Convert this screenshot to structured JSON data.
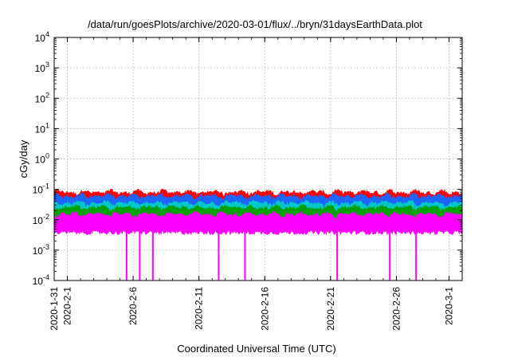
{
  "chart_data": {
    "type": "line",
    "title": "/data/run/goesPlots/archive/2020-03-01/flux/../bryn/31daysEarthData.plot",
    "xlabel": "Coordinated Universal Time (UTC)",
    "ylabel": "cGy/day",
    "yscale": "log",
    "ylim": [
      0.0001,
      10000
    ],
    "xlim": [
      "2020-01-31",
      "2020-03-02"
    ],
    "x_ticks": [
      "2020-1-31",
      "2020-2-1",
      "2020-2-6",
      "2020-2-11",
      "2020-2-16",
      "2020-2-21",
      "2020-2-26",
      "2020-3-1"
    ],
    "y_ticks": [
      {
        "base": "10",
        "exp": "-4"
      },
      {
        "base": "10",
        "exp": "-3"
      },
      {
        "base": "10",
        "exp": "-2"
      },
      {
        "base": "10",
        "exp": "-1"
      },
      {
        "base": "10",
        "exp": "0"
      },
      {
        "base": "10",
        "exp": "1"
      },
      {
        "base": "10",
        "exp": "2"
      },
      {
        "base": "10",
        "exp": "3"
      },
      {
        "base": "10",
        "exp": "4"
      }
    ],
    "grid": true,
    "series": [
      {
        "color": "#ff0000",
        "typical_low": 0.035,
        "typical_high": 0.08
      },
      {
        "color": "#1e64ff",
        "typical_low": 0.02,
        "typical_high": 0.06
      },
      {
        "color": "#00c8c8",
        "typical_low": 0.018,
        "typical_high": 0.035
      },
      {
        "color": "#00a000",
        "typical_low": 0.012,
        "typical_high": 0.025
      },
      {
        "color": "#ff00ff",
        "typical_low": 0.004,
        "typical_high": 0.015
      }
    ],
    "dropouts": [
      "2020-02-05",
      "2020-02-06",
      "2020-02-07",
      "2020-02-12",
      "2020-02-14",
      "2020-02-21",
      "2020-02-25",
      "2020-02-27"
    ]
  }
}
